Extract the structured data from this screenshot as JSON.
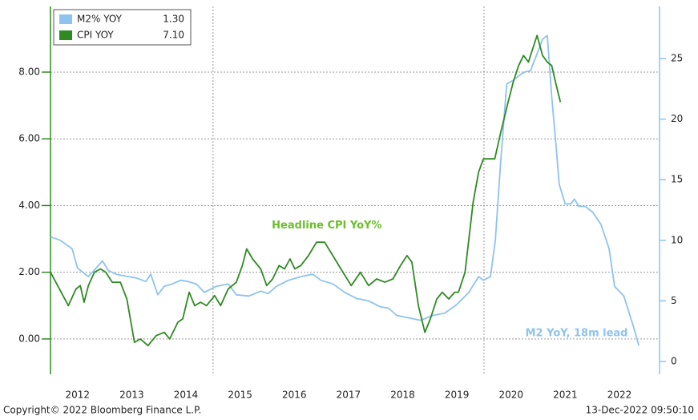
{
  "chart_data": {
    "type": "line",
    "series": [
      {
        "name": "M2% YOY",
        "last_label": "1.30",
        "color": "#8ec3ee",
        "axis": "y2",
        "x": [
          2012.0,
          2012.18,
          2012.4,
          2012.5,
          2012.7,
          2012.84,
          2012.96,
          2013.07,
          2013.21,
          2013.43,
          2013.58,
          2013.76,
          2013.85,
          2013.98,
          2014.1,
          2014.25,
          2014.4,
          2014.54,
          2014.69,
          2014.84,
          2015.06,
          2015.28,
          2015.43,
          2015.66,
          2015.88,
          2016.02,
          2016.17,
          2016.39,
          2016.62,
          2016.84,
          2016.99,
          2017.21,
          2017.43,
          2017.65,
          2017.87,
          2018.09,
          2018.24,
          2018.39,
          2018.61,
          2018.83,
          2019.06,
          2019.28,
          2019.5,
          2019.72,
          2019.9,
          2019.99,
          2020.12,
          2020.21,
          2020.31,
          2020.42,
          2020.54,
          2020.65,
          2020.76,
          2020.86,
          2020.98,
          2021.08,
          2021.17,
          2021.25,
          2021.32,
          2021.39,
          2021.5,
          2021.6,
          2021.67,
          2021.75,
          2021.87,
          2022.01,
          2022.16,
          2022.31,
          2022.41,
          2022.58,
          2022.75,
          2022.86
        ],
        "values": [
          10.3,
          10.0,
          9.3,
          7.7,
          7.0,
          7.7,
          8.3,
          7.5,
          7.2,
          7.0,
          6.9,
          6.6,
          7.2,
          5.5,
          6.2,
          6.4,
          6.7,
          6.6,
          6.4,
          5.7,
          6.2,
          6.4,
          5.5,
          5.4,
          5.8,
          5.6,
          6.2,
          6.7,
          7.0,
          7.2,
          6.7,
          6.4,
          5.7,
          5.2,
          5.0,
          4.5,
          4.4,
          3.8,
          3.6,
          3.4,
          3.8,
          4.0,
          4.7,
          5.7,
          7.0,
          6.7,
          7.0,
          10.0,
          16.6,
          22.9,
          23.2,
          23.6,
          23.9,
          24.0,
          25.4,
          26.6,
          26.9,
          21.9,
          18.3,
          14.6,
          13.0,
          13.0,
          13.4,
          12.8,
          12.8,
          12.3,
          11.3,
          9.3,
          6.2,
          5.4,
          3.0,
          1.3
        ]
      },
      {
        "name": "CPI YOY",
        "last_label": "7.10",
        "color": "#2e8b22",
        "x": [
          2012.0,
          2012.33,
          2012.47,
          2012.55,
          2012.62,
          2012.7,
          2012.81,
          2012.92,
          2013.02,
          2013.14,
          2013.29,
          2013.41,
          2013.55,
          2013.66,
          2013.8,
          2013.95,
          2014.1,
          2014.2,
          2014.35,
          2014.44,
          2014.56,
          2014.66,
          2014.77,
          2014.88,
          2015.03,
          2015.14,
          2015.28,
          2015.43,
          2015.54,
          2015.62,
          2015.73,
          2015.88,
          2015.99,
          2016.1,
          2016.22,
          2016.32,
          2016.42,
          2016.51,
          2016.62,
          2016.76,
          2016.91,
          2017.06,
          2017.21,
          2017.36,
          2017.55,
          2017.72,
          2017.87,
          2018.02,
          2018.17,
          2018.32,
          2018.46,
          2018.58,
          2018.67,
          2018.79,
          2018.91,
          2019.01,
          2019.13,
          2019.23,
          2019.35,
          2019.46,
          2019.53,
          2019.65,
          2019.8,
          2019.9,
          2019.99,
          2020.09,
          2020.2,
          2020.31,
          2020.43,
          2020.54,
          2020.64,
          2020.73,
          2020.82,
          2020.88,
          2020.98,
          2021.08,
          2021.17,
          2021.25,
          2021.32,
          2021.41
        ],
        "values": [
          2.0,
          1.0,
          1.5,
          1.6,
          1.1,
          1.6,
          2.0,
          2.1,
          2.0,
          1.7,
          1.7,
          1.2,
          -0.1,
          0.0,
          -0.2,
          0.1,
          0.2,
          0.0,
          0.5,
          0.6,
          1.4,
          1.0,
          1.1,
          1.0,
          1.3,
          1.0,
          1.5,
          1.7,
          2.2,
          2.7,
          2.4,
          2.1,
          1.6,
          1.8,
          2.2,
          2.1,
          2.4,
          2.1,
          2.2,
          2.5,
          2.9,
          2.9,
          2.5,
          2.1,
          1.6,
          2.0,
          1.6,
          1.8,
          1.7,
          1.8,
          2.2,
          2.5,
          2.3,
          1.0,
          0.2,
          0.6,
          1.2,
          1.4,
          1.2,
          1.4,
          1.4,
          2.0,
          4.1,
          5.0,
          5.4,
          5.4,
          5.4,
          6.2,
          7.0,
          7.7,
          8.2,
          8.5,
          8.3,
          8.6,
          9.1,
          8.5,
          8.3,
          8.2,
          7.7,
          7.1
        ]
      }
    ],
    "xlim": [
      2012.0,
      2023.24
    ],
    "xticks": [
      {
        "value": 2012.5,
        "label": "2012"
      },
      {
        "value": 2013.5,
        "label": "2013"
      },
      {
        "value": 2014.5,
        "label": "2014"
      },
      {
        "value": 2015.5,
        "label": "2015"
      },
      {
        "value": 2016.5,
        "label": "2016"
      },
      {
        "value": 2017.5,
        "label": "2017"
      },
      {
        "value": 2018.5,
        "label": "2018"
      },
      {
        "value": 2019.5,
        "label": "2019"
      },
      {
        "value": 2020.5,
        "label": "2020"
      },
      {
        "value": 2021.5,
        "label": "2021"
      },
      {
        "value": 2022.5,
        "label": "2022"
      }
    ],
    "xgrid": [
      2015,
      2020
    ],
    "ylim": [
      -1.06,
      9.97
    ],
    "yticks": [
      {
        "value": 0,
        "label": "0.00"
      },
      {
        "value": 2,
        "label": "2.00"
      },
      {
        "value": 4,
        "label": "4.00"
      },
      {
        "value": 6,
        "label": "6.00"
      },
      {
        "value": 8,
        "label": "8.00"
      }
    ],
    "y2lim": [
      -1.06,
      29.3
    ],
    "y2ticks": [
      0,
      5,
      10,
      15,
      20,
      25
    ],
    "grid": true,
    "legend": "upper left",
    "annotations": [
      {
        "text": "Headline CPI YoY%",
        "x": 2017.1,
        "y": 3.4,
        "color": "#6abf2a"
      },
      {
        "text": "M2 YoY, 18m lead",
        "x": 2021.71,
        "y": 2.3,
        "color": "#8ec3ee",
        "axis": "y2"
      }
    ],
    "footer_left": "Copyright© 2022 Bloomberg Finance L.P.",
    "footer_right": "13-Dec-2022 09:50:10"
  }
}
